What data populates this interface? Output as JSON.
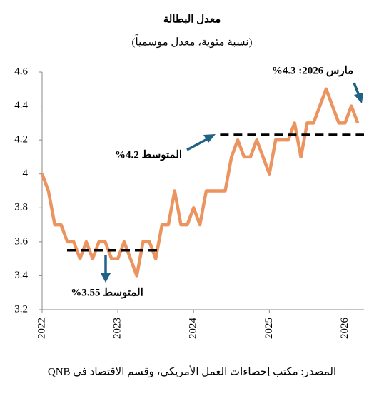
{
  "chart_data": {
    "type": "line",
    "title": "معدل البطالة",
    "subtitle": "(نسبة مئوية، معدل موسمياً)",
    "source": "المصدر: مكتب إحصاءات العمل الأمريكي، وقسم الاقتصاد في QNB",
    "x": [
      2022,
      2022.083,
      2022.167,
      2022.25,
      2022.333,
      2022.417,
      2022.5,
      2022.583,
      2022.667,
      2022.75,
      2022.833,
      2022.917,
      2023,
      2023.083,
      2023.167,
      2023.25,
      2023.333,
      2023.417,
      2023.5,
      2023.583,
      2023.667,
      2023.75,
      2023.833,
      2023.917,
      2024,
      2024.083,
      2024.167,
      2024.25,
      2024.333,
      2024.417,
      2024.5,
      2024.583,
      2024.667,
      2024.75,
      2024.833,
      2024.917,
      2025,
      2025.083,
      2025.167,
      2025.25,
      2025.333,
      2025.417,
      2025.5,
      2025.583,
      2025.667,
      2025.75,
      2025.833,
      2025.917,
      2026,
      2026.083,
      2026.167
    ],
    "series": [
      {
        "color": "#EB9460",
        "values": [
          4.0,
          3.9,
          3.7,
          3.7,
          3.6,
          3.6,
          3.5,
          3.6,
          3.5,
          3.6,
          3.6,
          3.5,
          3.5,
          3.6,
          3.5,
          3.4,
          3.6,
          3.6,
          3.5,
          3.7,
          3.7,
          3.9,
          3.7,
          3.7,
          3.8,
          3.7,
          3.9,
          3.9,
          3.9,
          3.9,
          4.1,
          4.2,
          4.1,
          4.1,
          4.2,
          4.1,
          4.0,
          4.2,
          4.2,
          4.2,
          4.3,
          4.1,
          4.3,
          4.3,
          4.4,
          4.5,
          4.4,
          4.3,
          4.3,
          4.4,
          4.3
        ]
      }
    ],
    "reference_lines": [
      {
        "label": "المتوسط 3.55%",
        "value": 3.55,
        "x": [
          2022.33,
          2023.55
        ]
      },
      {
        "label": "المتوسط 4.2%",
        "value": 4.23,
        "x": [
          2024.35,
          2026.25
        ]
      }
    ],
    "annotation": "مارس 2026: 4.3%",
    "xlim": [
      2022,
      2026.25
    ],
    "xticks": [
      2022,
      2023,
      2024,
      2025,
      2026
    ],
    "ylim": [
      3.2,
      4.6
    ],
    "yticks": [
      3.2,
      3.4,
      3.6,
      3.8,
      4,
      4.2,
      4.4,
      4.6
    ]
  }
}
